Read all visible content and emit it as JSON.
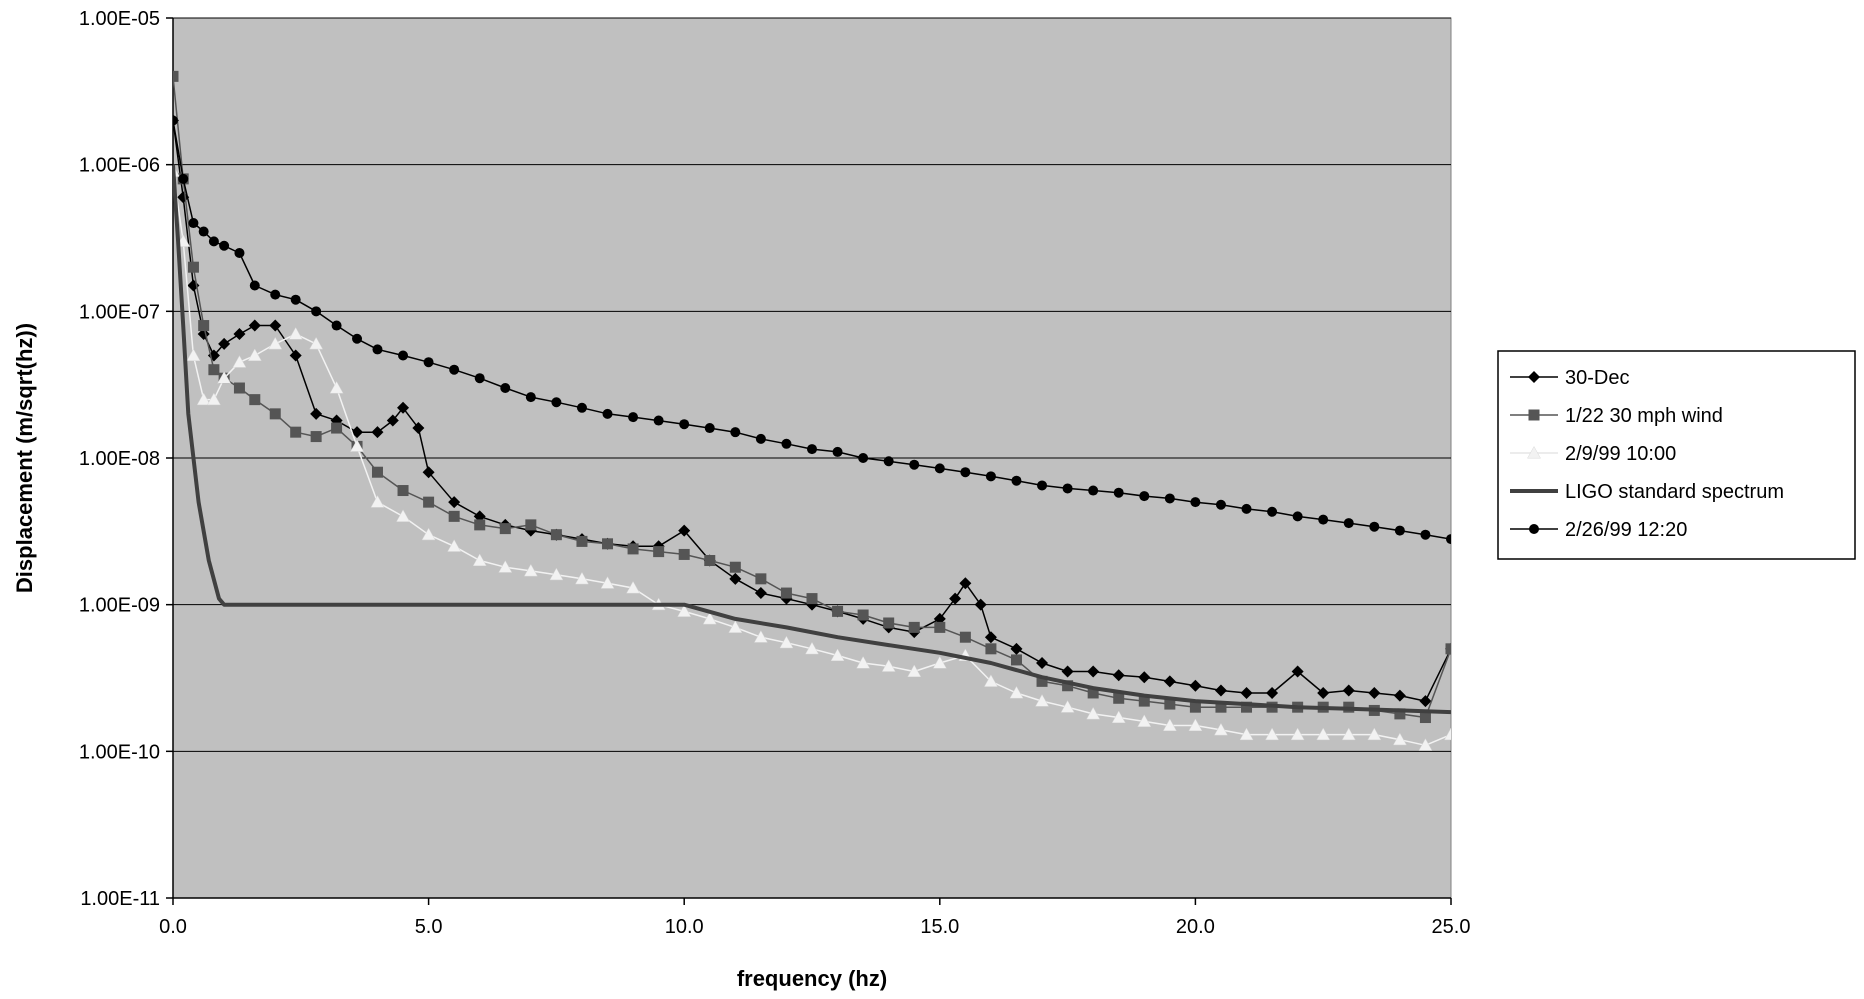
{
  "chart_data": {
    "type": "line",
    "title": "",
    "xlabel": "frequency (hz)",
    "ylabel": "Displacement (m/sqrt(hz))",
    "xlim": [
      0,
      25
    ],
    "ylim": [
      1e-11,
      1e-05
    ],
    "yscale": "log",
    "grid": "horizontal major gridlines",
    "plot_background": "#c0c0c0",
    "x_ticks": [
      "0.0",
      "5.0",
      "10.0",
      "15.0",
      "20.0",
      "25.0"
    ],
    "y_ticks": [
      "1.00E-11",
      "1.00E-10",
      "1.00E-09",
      "1.00E-08",
      "1.00E-07",
      "1.00E-06",
      "1.00E-05"
    ],
    "legend_position": "right",
    "series": [
      {
        "name": "30-Dec",
        "color": "#000000",
        "marker": "diamond",
        "x": [
          0,
          0.2,
          0.4,
          0.6,
          0.8,
          1,
          1.3,
          1.6,
          2,
          2.4,
          2.8,
          3.2,
          3.6,
          4,
          4.3,
          4.5,
          4.8,
          5,
          5.5,
          6,
          6.5,
          7,
          7.5,
          8,
          8.5,
          9,
          9.5,
          10,
          10.5,
          11,
          11.5,
          12,
          12.5,
          13,
          13.5,
          14,
          14.5,
          15,
          15.3,
          15.5,
          15.8,
          16,
          16.5,
          17,
          17.5,
          18,
          18.5,
          19,
          19.5,
          20,
          20.5,
          21,
          21.5,
          22,
          22.5,
          23,
          23.5,
          24,
          24.5,
          25
        ],
        "y": [
          2e-06,
          6e-07,
          1.5e-07,
          7e-08,
          5e-08,
          6e-08,
          7e-08,
          8e-08,
          8e-08,
          5e-08,
          2e-08,
          1.8e-08,
          1.5e-08,
          1.5e-08,
          1.8e-08,
          2.2e-08,
          1.6e-08,
          8e-09,
          5e-09,
          4e-09,
          3.5e-09,
          3.2e-09,
          3e-09,
          2.8e-09,
          2.6e-09,
          2.5e-09,
          2.5e-09,
          3.2e-09,
          2e-09,
          1.5e-09,
          1.2e-09,
          1.1e-09,
          1e-09,
          9e-10,
          8e-10,
          7e-10,
          6.5e-10,
          8e-10,
          1.1e-09,
          1.4e-09,
          1e-09,
          6e-10,
          5e-10,
          4e-10,
          3.5e-10,
          3.5e-10,
          3.3e-10,
          3.2e-10,
          3e-10,
          2.8e-10,
          2.6e-10,
          2.5e-10,
          2.5e-10,
          3.5e-10,
          2.5e-10,
          2.6e-10,
          2.5e-10,
          2.4e-10,
          2.2e-10,
          5e-10
        ]
      },
      {
        "name": "1/22 30 mph wind",
        "color": "#555555",
        "marker": "square",
        "x": [
          0,
          0.2,
          0.4,
          0.6,
          0.8,
          1,
          1.3,
          1.6,
          2,
          2.4,
          2.8,
          3.2,
          3.6,
          4,
          4.5,
          5,
          5.5,
          6,
          6.5,
          7,
          7.5,
          8,
          8.5,
          9,
          9.5,
          10,
          10.5,
          11,
          11.5,
          12,
          12.5,
          13,
          13.5,
          14,
          14.5,
          15,
          15.5,
          16,
          16.5,
          17,
          17.5,
          18,
          18.5,
          19,
          19.5,
          20,
          20.5,
          21,
          21.5,
          22,
          22.5,
          23,
          23.5,
          24,
          24.5,
          25
        ],
        "y": [
          4e-06,
          8e-07,
          2e-07,
          8e-08,
          4e-08,
          3.5e-08,
          3e-08,
          2.5e-08,
          2e-08,
          1.5e-08,
          1.4e-08,
          1.6e-08,
          1.2e-08,
          8e-09,
          6e-09,
          5e-09,
          4e-09,
          3.5e-09,
          3.3e-09,
          3.5e-09,
          3e-09,
          2.7e-09,
          2.6e-09,
          2.4e-09,
          2.3e-09,
          2.2e-09,
          2e-09,
          1.8e-09,
          1.5e-09,
          1.2e-09,
          1.1e-09,
          9e-10,
          8.5e-10,
          7.5e-10,
          7e-10,
          7e-10,
          6e-10,
          5e-10,
          4.2e-10,
          3e-10,
          2.8e-10,
          2.5e-10,
          2.3e-10,
          2.2e-10,
          2.1e-10,
          2e-10,
          2e-10,
          2e-10,
          2e-10,
          2e-10,
          2e-10,
          2e-10,
          1.9e-10,
          1.8e-10,
          1.7e-10,
          5e-10
        ]
      },
      {
        "name": "2/9/99 10:00",
        "color": "#f2f2f2",
        "marker": "triangle",
        "x": [
          0,
          0.2,
          0.4,
          0.6,
          0.8,
          1,
          1.3,
          1.6,
          2,
          2.4,
          2.8,
          3.2,
          3.6,
          4,
          4.5,
          5,
          5.5,
          6,
          6.5,
          7,
          7.5,
          8,
          8.5,
          9,
          9.5,
          10,
          10.5,
          11,
          11.5,
          12,
          12.5,
          13,
          13.5,
          14,
          14.5,
          15,
          15.5,
          16,
          16.5,
          17,
          17.5,
          18,
          18.5,
          19,
          19.5,
          20,
          20.5,
          21,
          21.5,
          22,
          22.5,
          23,
          23.5,
          24,
          24.5,
          25
        ],
        "y": [
          9e-07,
          3e-07,
          5e-08,
          2.5e-08,
          2.5e-08,
          3.5e-08,
          4.5e-08,
          5e-08,
          6e-08,
          7e-08,
          6e-08,
          3e-08,
          1.2e-08,
          5e-09,
          4e-09,
          3e-09,
          2.5e-09,
          2e-09,
          1.8e-09,
          1.7e-09,
          1.6e-09,
          1.5e-09,
          1.4e-09,
          1.3e-09,
          1e-09,
          9e-10,
          8e-10,
          7e-10,
          6e-10,
          5.5e-10,
          5e-10,
          4.5e-10,
          4e-10,
          3.8e-10,
          3.5e-10,
          4e-10,
          4.5e-10,
          3e-10,
          2.5e-10,
          2.2e-10,
          2e-10,
          1.8e-10,
          1.7e-10,
          1.6e-10,
          1.5e-10,
          1.5e-10,
          1.4e-10,
          1.3e-10,
          1.3e-10,
          1.3e-10,
          1.3e-10,
          1.3e-10,
          1.3e-10,
          1.2e-10,
          1.1e-10,
          1.3e-10
        ]
      },
      {
        "name": "LIGO standard spectrum",
        "color": "#404040",
        "marker": "none",
        "x": [
          0,
          0.1,
          0.2,
          0.3,
          0.5,
          0.7,
          0.9,
          1,
          2,
          4,
          6,
          8,
          10,
          11,
          12,
          13,
          14,
          15,
          16,
          17,
          18,
          19,
          20,
          21,
          22,
          23,
          24,
          25
        ],
        "y": [
          1e-06,
          3e-07,
          8e-08,
          2e-08,
          5e-09,
          2e-09,
          1.1e-09,
          1e-09,
          1e-09,
          1e-09,
          1e-09,
          1e-09,
          1e-09,
          8e-10,
          7e-10,
          6e-10,
          5.3e-10,
          4.7e-10,
          4e-10,
          3.2e-10,
          2.7e-10,
          2.4e-10,
          2.2e-10,
          2.1e-10,
          2e-10,
          1.95e-10,
          1.9e-10,
          1.85e-10
        ]
      },
      {
        "name": "2/26/99 12:20",
        "color": "#000000",
        "marker": "circle",
        "x": [
          0,
          0.2,
          0.4,
          0.6,
          0.8,
          1,
          1.3,
          1.6,
          2,
          2.4,
          2.8,
          3.2,
          3.6,
          4,
          4.5,
          5,
          5.5,
          6,
          6.5,
          7,
          7.5,
          8,
          8.5,
          9,
          9.5,
          10,
          10.5,
          11,
          11.5,
          12,
          12.5,
          13,
          13.5,
          14,
          14.5,
          15,
          15.5,
          16,
          16.5,
          17,
          17.5,
          18,
          18.5,
          19,
          19.5,
          20,
          20.5,
          21,
          21.5,
          22,
          22.5,
          23,
          23.5,
          24,
          24.5,
          25
        ],
        "y": [
          2e-06,
          8e-07,
          4e-07,
          3.5e-07,
          3e-07,
          2.8e-07,
          2.5e-07,
          1.5e-07,
          1.3e-07,
          1.2e-07,
          1e-07,
          8e-08,
          6.5e-08,
          5.5e-08,
          5e-08,
          4.5e-08,
          4e-08,
          3.5e-08,
          3e-08,
          2.6e-08,
          2.4e-08,
          2.2e-08,
          2e-08,
          1.9e-08,
          1.8e-08,
          1.7e-08,
          1.6e-08,
          1.5e-08,
          1.35e-08,
          1.25e-08,
          1.15e-08,
          1.1e-08,
          1e-08,
          9.5e-09,
          9e-09,
          8.5e-09,
          8e-09,
          7.5e-09,
          7e-09,
          6.5e-09,
          6.2e-09,
          6e-09,
          5.8e-09,
          5.5e-09,
          5.3e-09,
          5e-09,
          4.8e-09,
          4.5e-09,
          4.3e-09,
          4e-09,
          3.8e-09,
          3.6e-09,
          3.4e-09,
          3.2e-09,
          3e-09,
          2.8e-09
        ]
      }
    ]
  }
}
